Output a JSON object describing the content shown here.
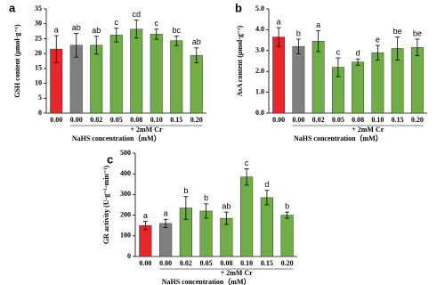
{
  "chart_data": [
    {
      "type": "bar",
      "panel_label": "a",
      "ylabel": "GSH content (μmol·g⁻¹)",
      "xlabel": "NaHS concentration（mM）",
      "group_label": "+ 2mM Cr",
      "categories": [
        "0.00",
        "0.00",
        "0.02",
        "0.05",
        "0.08",
        "0.10",
        "0.15",
        "0.20"
      ],
      "values": [
        21.5,
        22.8,
        22.8,
        26.2,
        28.2,
        26.5,
        24.3,
        19.4
      ],
      "errors": [
        4.5,
        4,
        3,
        2.3,
        3,
        1.7,
        1.6,
        2.5
      ],
      "letters": [
        "a",
        "ab",
        "ab",
        "c",
        "cd",
        "c",
        "bc",
        "ab"
      ],
      "colors": [
        "#e8262a",
        "#7f7f7f",
        "#70ad47",
        "#70ad47",
        "#70ad47",
        "#70ad47",
        "#70ad47",
        "#70ad47"
      ],
      "ylim": [
        0,
        35
      ],
      "yticks": [
        0,
        5,
        10,
        15,
        20,
        25,
        30,
        35
      ]
    },
    {
      "type": "bar",
      "panel_label": "b",
      "ylabel": "AsA content (μmol·g⁻¹)",
      "xlabel": "NaHS concentration（mM）",
      "group_label": "+ 2mM Cr",
      "categories": [
        "0.00",
        "0.00",
        "0.02",
        "0.05",
        "0.08",
        "0.10",
        "0.15",
        "0.20"
      ],
      "values": [
        3.65,
        3.2,
        3.45,
        2.2,
        2.45,
        2.9,
        3.1,
        3.15
      ],
      "errors": [
        0.45,
        0.35,
        0.5,
        0.45,
        0.15,
        0.35,
        0.55,
        0.4
      ],
      "letters": [
        "a",
        "b",
        "a",
        "c",
        "d",
        "e",
        "be",
        "be"
      ],
      "colors": [
        "#e8262a",
        "#7f7f7f",
        "#70ad47",
        "#70ad47",
        "#70ad47",
        "#70ad47",
        "#70ad47",
        "#70ad47"
      ],
      "ylim": [
        0,
        5
      ],
      "yticks": [
        {
          "value": 0,
          "label": "0.0"
        },
        {
          "value": 1,
          "label": "1.0"
        },
        {
          "value": 2,
          "label": "2.0"
        },
        {
          "value": 3,
          "label": "3.0"
        },
        {
          "value": 4,
          "label": "4.0"
        },
        {
          "value": 5,
          "label": "5.0"
        }
      ]
    },
    {
      "type": "bar",
      "panel_label": "c",
      "ylabel": "GR activity (U·g⁻¹·min⁻¹)",
      "xlabel": "NaHS concentration（mM）",
      "group_label": "+ 2mM Cr",
      "categories": [
        "0.00",
        "0.00",
        "0.02",
        "0.05",
        "0.08",
        "0.10",
        "0.15",
        "0.20"
      ],
      "values": [
        150,
        160,
        235,
        220,
        185,
        385,
        285,
        200
      ],
      "errors": [
        20,
        20,
        55,
        35,
        30,
        40,
        35,
        15
      ],
      "letters": [
        "a",
        "a",
        "b",
        "b",
        "ab",
        "c",
        "d",
        "b"
      ],
      "colors": [
        "#e8262a",
        "#7f7f7f",
        "#70ad47",
        "#70ad47",
        "#70ad47",
        "#70ad47",
        "#70ad47",
        "#70ad47"
      ],
      "ylim": [
        0,
        500
      ],
      "yticks": [
        0,
        100,
        200,
        300,
        400,
        500
      ]
    }
  ]
}
